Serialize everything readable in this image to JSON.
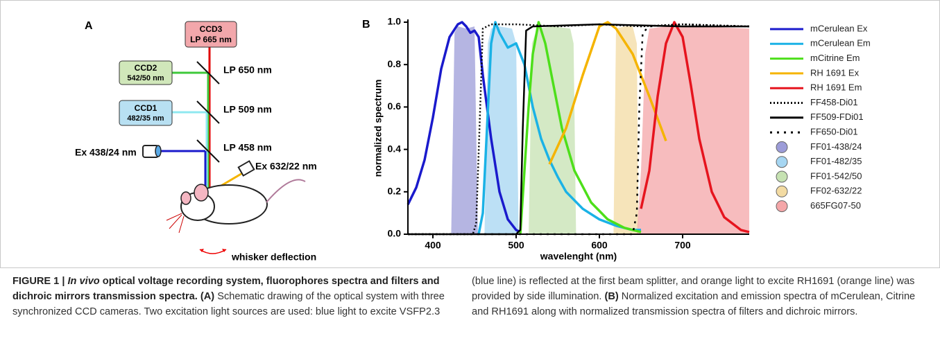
{
  "panel_a": {
    "label": "A",
    "ccd3": {
      "name": "CCD3",
      "filter": "LP 665 nm"
    },
    "ccd2": {
      "name": "CCD2",
      "filter": "542/50 nm"
    },
    "ccd1": {
      "name": "CCD1",
      "filter": "482/35 nm"
    },
    "mirrors": [
      "LP 650 nm",
      "LP 509 nm",
      "LP 458 nm"
    ],
    "excitation_blue": "Ex 438/24 nm",
    "excitation_orange": "Ex 632/22 nm",
    "stimulus": "whisker deflection"
  },
  "chart_data": {
    "type": "line",
    "panel_label": "B",
    "x_label": "wavelenght (nm)",
    "y_label": "normalized spectrum",
    "xlim": [
      370,
      780
    ],
    "xticks": [
      400,
      500,
      600,
      700
    ],
    "ylim": [
      0,
      1
    ],
    "yticks": [
      {
        "value": 0,
        "label": "0.0"
      },
      0.2,
      0.4,
      0.6,
      0.8,
      {
        "value": 1,
        "label": "1.0"
      }
    ],
    "series": [
      {
        "name": "mCerulean Ex",
        "color": "#1a1acc",
        "style": "solid",
        "x": [
          370,
          380,
          390,
          400,
          410,
          420,
          430,
          435,
          440,
          445,
          450,
          455,
          460,
          470,
          480,
          490,
          500,
          505
        ],
        "values": [
          0.14,
          0.22,
          0.35,
          0.55,
          0.78,
          0.93,
          0.99,
          1.0,
          0.98,
          0.95,
          0.96,
          0.93,
          0.75,
          0.45,
          0.2,
          0.07,
          0.02,
          0.01
        ]
      },
      {
        "name": "mCerulean Em",
        "color": "#1ab2e6",
        "style": "solid",
        "x": [
          455,
          460,
          465,
          470,
          475,
          480,
          490,
          500,
          510,
          520,
          530,
          540,
          550,
          560,
          580,
          600,
          620,
          640,
          650
        ],
        "values": [
          0.0,
          0.1,
          0.5,
          0.9,
          1.0,
          0.95,
          0.88,
          0.9,
          0.8,
          0.6,
          0.45,
          0.35,
          0.27,
          0.2,
          0.12,
          0.07,
          0.04,
          0.02,
          0.02
        ]
      },
      {
        "name": "mCitrine Em",
        "color": "#4ddf1a",
        "style": "solid",
        "x": [
          505,
          510,
          515,
          520,
          527,
          535,
          545,
          555,
          570,
          590,
          610,
          630,
          650
        ],
        "values": [
          0.0,
          0.3,
          0.6,
          0.85,
          1.0,
          0.9,
          0.7,
          0.5,
          0.3,
          0.15,
          0.07,
          0.03,
          0.01
        ]
      },
      {
        "name": "RH 1691 Ex",
        "color": "#f5b400",
        "style": "solid",
        "x": [
          540,
          560,
          580,
          600,
          610,
          620,
          640,
          660,
          680
        ],
        "values": [
          0.33,
          0.5,
          0.75,
          0.98,
          1.0,
          0.97,
          0.85,
          0.65,
          0.44
        ]
      },
      {
        "name": "RH 1691 Em",
        "color": "#e6141e",
        "style": "solid",
        "x": [
          650,
          660,
          670,
          680,
          690,
          700,
          710,
          720,
          735,
          750,
          770,
          780
        ],
        "values": [
          0.12,
          0.3,
          0.65,
          0.9,
          1.0,
          0.93,
          0.7,
          0.45,
          0.2,
          0.08,
          0.02,
          0.01
        ]
      },
      {
        "name": "FF458-Di01",
        "color": "#000000",
        "style": "dotted",
        "x": [
          370,
          448,
          452,
          456,
          460,
          470,
          500,
          550,
          600,
          650,
          700,
          780
        ],
        "values": [
          0,
          0,
          0.05,
          0.5,
          0.97,
          0.99,
          0.99,
          0.98,
          0.99,
          0.98,
          0.99,
          0.98
        ]
      },
      {
        "name": "FF509-FDi01",
        "color": "#000000",
        "style": "solid",
        "x": [
          370,
          500,
          505,
          508,
          512,
          520,
          600,
          700,
          780
        ],
        "values": [
          0,
          0,
          0.02,
          0.5,
          0.96,
          0.98,
          0.99,
          0.98,
          0.98
        ]
      },
      {
        "name": "FF650-Di01",
        "color": "#000000",
        "style": "sparse-dotted",
        "x": [
          370,
          640,
          645,
          648,
          652,
          660,
          700,
          780
        ],
        "values": [
          0,
          0,
          0.1,
          0.6,
          0.95,
          0.98,
          0.99,
          0.98
        ]
      },
      {
        "name": "FF01-438/24",
        "color": "#9c9cd8",
        "style": "area",
        "x": [
          422,
          426,
          430,
          440,
          450,
          454
        ],
        "values": [
          0,
          0.95,
          0.98,
          0.97,
          0.98,
          0
        ]
      },
      {
        "name": "FF01-482/35",
        "color": "#a6d6f2",
        "style": "area",
        "x": [
          462,
          466,
          470,
          480,
          495,
          500,
          503
        ],
        "values": [
          0,
          0.9,
          0.97,
          0.98,
          0.97,
          0.9,
          0
        ]
      },
      {
        "name": "FF01-542/50",
        "color": "#c6e2b2",
        "style": "area",
        "x": [
          515,
          519,
          525,
          545,
          565,
          569,
          572
        ],
        "values": [
          0,
          0.9,
          0.97,
          0.98,
          0.97,
          0.9,
          0
        ]
      },
      {
        "name": "FF02-632/22",
        "color": "#f3dba3",
        "style": "area",
        "x": [
          617,
          620,
          630,
          640,
          645,
          647
        ],
        "values": [
          0,
          0.97,
          0.98,
          0.98,
          0.9,
          0
        ]
      },
      {
        "name": "665FG07-50",
        "color": "#f4a6a8",
        "style": "area",
        "x": [
          645,
          650,
          655,
          660,
          680,
          720,
          780
        ],
        "values": [
          0,
          0.3,
          0.85,
          0.97,
          0.98,
          0.98,
          0.97
        ]
      }
    ]
  },
  "caption": {
    "left": [
      {
        "text": "FIGURE 1 | ",
        "style": "bold"
      },
      {
        "text": "In vivo",
        "style": "bold-italic"
      },
      {
        "text": " optical voltage recording system, fluorophores spectra and filters and dichroic mirrors transmission spectra. (A)",
        "style": "bold"
      },
      {
        "text": " Schematic drawing of the optical system with three synchronized CCD cameras. Two excitation light sources are used: blue light to excite VSFP2.3",
        "style": "normal"
      }
    ],
    "right": [
      {
        "text": "(blue line) is reflected at the first beam splitter, and orange light to excite RH1691 (orange line) was provided by side illumination. ",
        "style": "normal"
      },
      {
        "text": "(B)",
        "style": "bold"
      },
      {
        "text": " Normalized excitation and emission spectra of mCerulean, Citrine and RH1691 along with normalized transmission spectra of filters and dichroic mirrors.",
        "style": "normal"
      }
    ]
  }
}
